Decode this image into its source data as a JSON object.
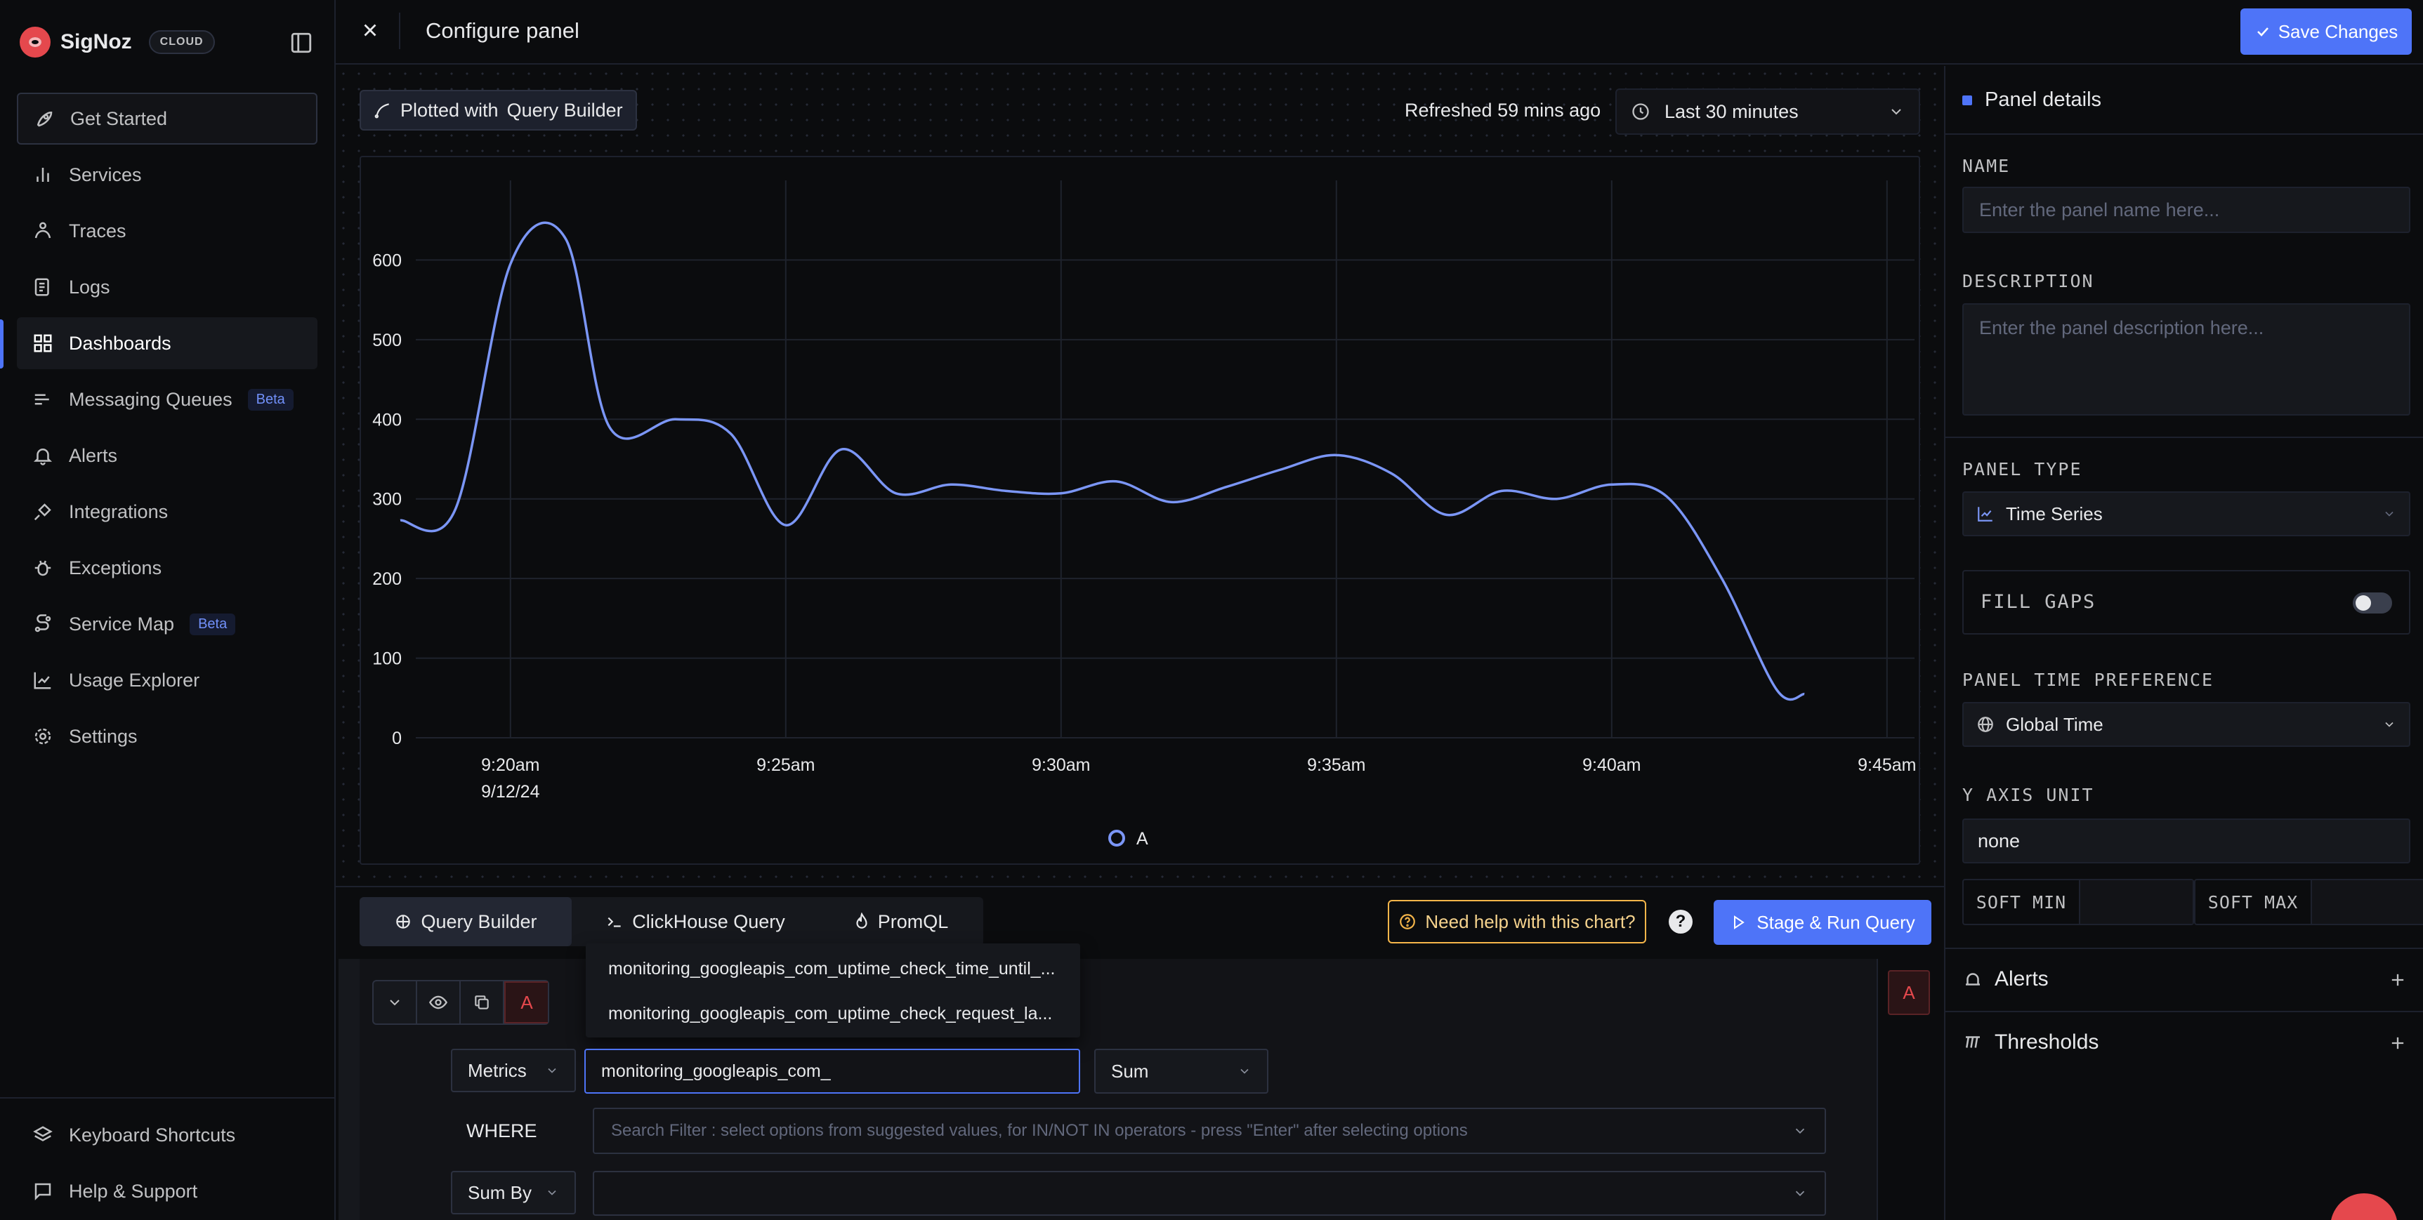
{
  "app": {
    "name": "SigNoz",
    "badge": "CLOUD"
  },
  "sidebar": {
    "items": [
      {
        "label": "Get Started",
        "icon": "rocket-icon",
        "badge": ""
      },
      {
        "label": "Services",
        "icon": "bar-chart-icon",
        "badge": ""
      },
      {
        "label": "Traces",
        "icon": "traces-icon",
        "badge": ""
      },
      {
        "label": "Logs",
        "icon": "logs-icon",
        "badge": ""
      },
      {
        "label": "Dashboards",
        "icon": "dashboard-grid-icon",
        "badge": ""
      },
      {
        "label": "Messaging Queues",
        "icon": "queue-icon",
        "badge": "Beta"
      },
      {
        "label": "Alerts",
        "icon": "bell-icon",
        "badge": ""
      },
      {
        "label": "Integrations",
        "icon": "plug-icon",
        "badge": ""
      },
      {
        "label": "Exceptions",
        "icon": "bug-icon",
        "badge": ""
      },
      {
        "label": "Service Map",
        "icon": "route-icon",
        "badge": "Beta"
      },
      {
        "label": "Usage Explorer",
        "icon": "line-chart-icon",
        "badge": ""
      },
      {
        "label": "Settings",
        "icon": "gear-icon",
        "badge": ""
      }
    ],
    "footer": [
      {
        "label": "Keyboard Shortcuts",
        "icon": "layers-icon"
      },
      {
        "label": "Help & Support",
        "icon": "message-square-icon"
      }
    ]
  },
  "header": {
    "title": "Configure panel",
    "save_label": "Save Changes"
  },
  "chart_toolbar": {
    "plotted_prefix": "Plotted with",
    "plotted_source": "Query Builder",
    "refreshed": "Refreshed 59 mins ago",
    "time_range": "Last 30 minutes"
  },
  "chart_data": {
    "type": "line",
    "title": "",
    "xlabel": "",
    "ylabel": "",
    "ylim": [
      0,
      700
    ],
    "yticks": [
      0,
      100,
      200,
      300,
      400,
      500,
      600
    ],
    "xticks": [
      "9:20am",
      "9:25am",
      "9:30am",
      "9:35am",
      "9:40am",
      "9:45am"
    ],
    "xtick_sublabel": "9/12/24",
    "x_unit": "minutes after 9:20am",
    "grid": true,
    "legend": "bottom-center",
    "series": [
      {
        "name": "A",
        "color": "#7b96f6",
        "x": [
          -2,
          -1,
          0,
          1,
          1.8,
          3,
          4,
          5,
          6,
          7,
          8,
          9,
          10,
          11,
          12,
          13,
          14,
          15,
          16,
          17,
          18,
          19,
          20,
          21,
          22,
          23,
          23.5
        ],
        "y": [
          273,
          287,
          595,
          627,
          390,
          400,
          382,
          267,
          362,
          307,
          318,
          310,
          307,
          322,
          296,
          315,
          337,
          355,
          332,
          280,
          310,
          300,
          318,
          303,
          200,
          60,
          55
        ]
      }
    ]
  },
  "query_tabs": {
    "builder": "Query Builder",
    "clickhouse": "ClickHouse Query",
    "promql": "PromQL"
  },
  "help_label": "Need help with this chart?",
  "run_label": "Stage & Run Query",
  "query": {
    "letter": "A",
    "data_source": "Metrics",
    "metric_value": "monitoring_googleapis_com_",
    "aggregation": "Sum",
    "where_label": "WHERE",
    "filter_placeholder": "Search Filter : select options from suggested values, for IN/NOT IN operators - press \"Enter\" after selecting options",
    "group_by": "Sum By",
    "suggestions": [
      "monitoring_googleapis_com_uptime_check_time_until_...",
      "monitoring_googleapis_com_uptime_check_request_la..."
    ]
  },
  "panel": {
    "section_title": "Panel details",
    "name_label": "NAME",
    "name_placeholder": "Enter the panel name here...",
    "desc_label": "DESCRIPTION",
    "desc_placeholder": "Enter the panel description here...",
    "type_label": "PANEL TYPE",
    "type_value": "Time Series",
    "fill_gaps_label": "FILL GAPS",
    "time_pref_label": "PANEL TIME PREFERENCE",
    "time_pref_value": "Global Time",
    "y_unit_label": "Y AXIS UNIT",
    "y_unit_value": "none",
    "soft_min_label": "SOFT MIN",
    "soft_max_label": "SOFT MAX",
    "alerts_label": "Alerts",
    "thresholds_label": "Thresholds"
  },
  "colors": {
    "accent": "#4e74f8",
    "series": "#7b96f6",
    "danger": "#e5484d",
    "warning": "#f6b64a"
  }
}
